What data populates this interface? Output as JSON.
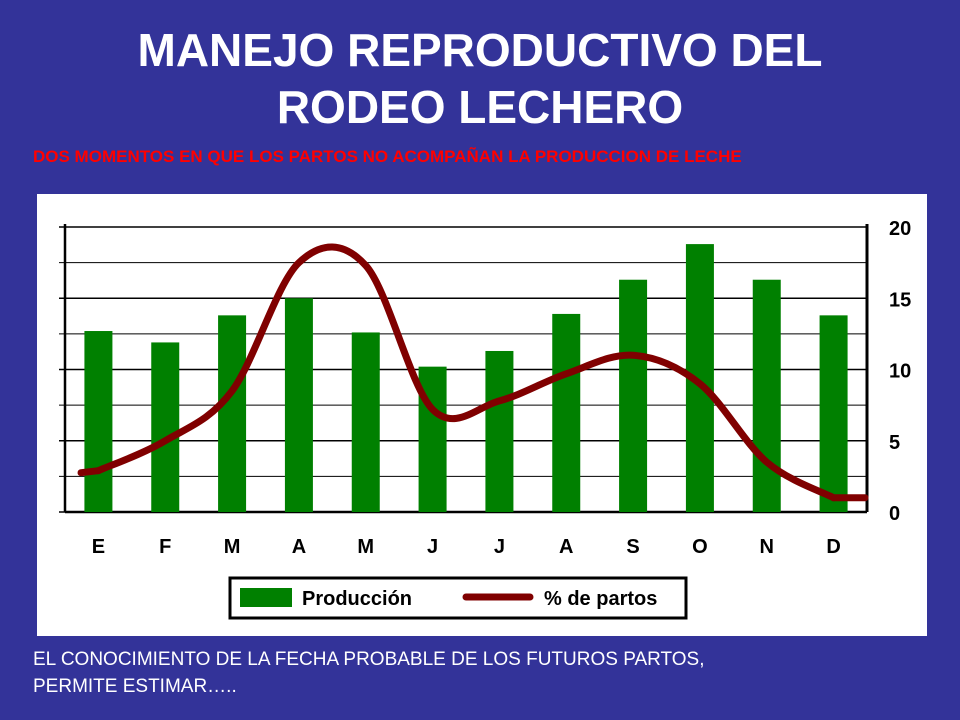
{
  "slide": {
    "title_line1": "MANEJO REPRODUCTIVO DEL",
    "title_line2": "RODEO LECHERO",
    "subtitle": "DOS MOMENTOS EN QUE LOS PARTOS NO ACOMPAÑAN LA PRODUCCION DE LECHE",
    "footer_line1": "EL CONOCIMIENTO DE LA FECHA  PROBABLE DE LOS FUTUROS PARTOS,",
    "footer_line2": "PERMITE ESTIMAR….."
  },
  "colors": {
    "background": "#333399",
    "bar": "#008000",
    "line": "#800000",
    "subtitle": "#ff0000"
  },
  "chart_data": {
    "type": "bar",
    "categories": [
      "E",
      "F",
      "M",
      "A",
      "M",
      "J",
      "J",
      "A",
      "S",
      "O",
      "N",
      "D"
    ],
    "ylim": [
      0,
      20
    ],
    "yticks": [
      0,
      5,
      10,
      15,
      20
    ],
    "y_axis_side": "right",
    "grid": true,
    "legend_position": "bottom",
    "series": [
      {
        "name": "Producción",
        "type": "bar",
        "values": [
          12.7,
          11.9,
          13.8,
          15.0,
          12.6,
          10.2,
          11.3,
          13.9,
          16.3,
          18.8,
          16.3,
          13.8
        ]
      },
      {
        "name": "% de partos",
        "type": "line",
        "smooth": true,
        "values": [
          2.9,
          5.0,
          8.5,
          17.5,
          17.3,
          7.2,
          7.8,
          9.7,
          11.0,
          9.0,
          3.5,
          1.0
        ]
      }
    ]
  }
}
